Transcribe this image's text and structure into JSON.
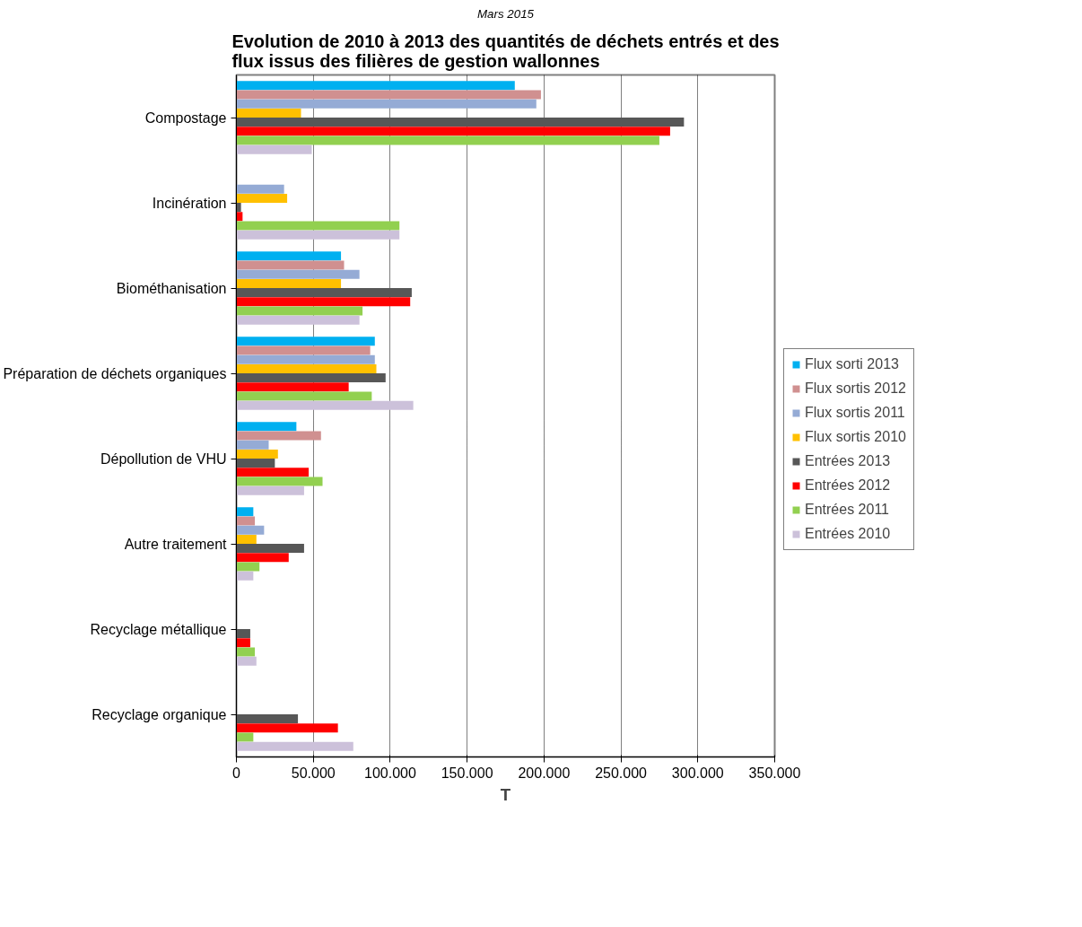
{
  "chart_data": {
    "type": "bar",
    "orientation": "horizontal",
    "title": "Evolution de 2010 à 2013 des quantités de déchets entrés et des flux issus des filières de gestion wallonnes",
    "annotations": [
      "Mars 2015"
    ],
    "xlabel": "T",
    "categories": [
      "Compostage",
      "Incinération",
      "Biométhanisation",
      "Préparation de déchets organiques",
      "Dépollution de VHU",
      "Autre traitement",
      "Recyclage métallique",
      "Recyclage organique"
    ],
    "series": [
      {
        "name": "Flux sorti 2013",
        "color": "#00b0f0",
        "values": [
          181000,
          null,
          68000,
          90000,
          39000,
          11000,
          null,
          null
        ]
      },
      {
        "name": "Flux sortis 2012",
        "color": "#d09090",
        "values": [
          198000,
          null,
          70000,
          87000,
          55000,
          12000,
          null,
          null
        ]
      },
      {
        "name": "Flux sortis 2011",
        "color": "#95abd5",
        "values": [
          195000,
          31000,
          80000,
          90000,
          21000,
          18000,
          null,
          null
        ]
      },
      {
        "name": "Flux sortis 2010",
        "color": "#ffc000",
        "values": [
          42000,
          33000,
          68000,
          91000,
          27000,
          13000,
          null,
          null
        ]
      },
      {
        "name": "Entrées 2013",
        "color": "#575757",
        "values": [
          291000,
          3000,
          114000,
          97000,
          25000,
          44000,
          9000,
          40000
        ]
      },
      {
        "name": "Entrées 2012",
        "color": "#ff0000",
        "values": [
          282000,
          4000,
          113000,
          73000,
          47000,
          34000,
          9000,
          66000
        ]
      },
      {
        "name": "Entrées 2011",
        "color": "#92d050",
        "values": [
          275000,
          106000,
          82000,
          88000,
          56000,
          15000,
          12000,
          11000
        ]
      },
      {
        "name": "Entrées 2010",
        "color": "#ccc1da",
        "values": [
          49000,
          106000,
          80000,
          115000,
          44000,
          11000,
          13000,
          76000
        ]
      }
    ],
    "xlim": [
      0,
      350000
    ],
    "xticks": [
      0,
      {
        "value": 50000,
        "label": "50.000"
      },
      {
        "value": 100000,
        "label": "100.000"
      },
      {
        "value": 150000,
        "label": "150.000"
      },
      {
        "value": 200000,
        "label": "200.000"
      },
      {
        "value": 250000,
        "label": "250.000"
      },
      {
        "value": 300000,
        "label": "300.000"
      },
      {
        "value": 350000,
        "label": "350.000"
      }
    ],
    "grid": "x",
    "legend": "right"
  }
}
